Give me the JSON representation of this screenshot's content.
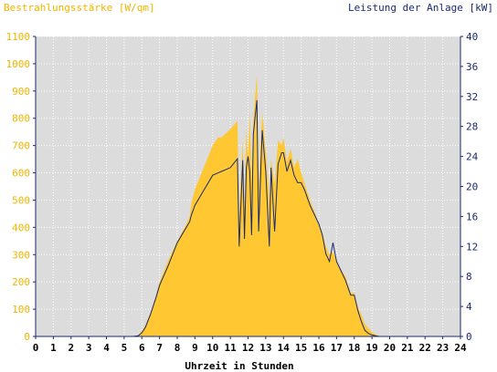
{
  "chart_data": {
    "type": "area",
    "y_left_label": "Bestrahlungsstärke [W/qm]",
    "y_right_label": "Leistung der Anlage [kW]",
    "xlabel": "Uhrzeit in Stunden",
    "xlim": [
      0,
      24
    ],
    "y_left_lim": [
      0,
      1100
    ],
    "y_right_lim": [
      0,
      40
    ],
    "x_ticks": [
      "0",
      "1",
      "2",
      "3",
      "4",
      "5",
      "6",
      "7",
      "8",
      "9",
      "10",
      "11",
      "12",
      "13",
      "14",
      "15",
      "16",
      "17",
      "18",
      "19",
      "20",
      "21",
      "22",
      "23",
      "24"
    ],
    "y_left_ticks": [
      "0",
      "100",
      "200",
      "300",
      "400",
      "500",
      "600",
      "700",
      "800",
      "900",
      "1000",
      "1100"
    ],
    "y_right_ticks": [
      "0",
      "4",
      "8",
      "12",
      "16",
      "20",
      "24",
      "28",
      "32",
      "36",
      "40"
    ],
    "grid": true,
    "colors": {
      "irradiance": "#ffc832",
      "power": "#1a2a6c",
      "plot_bg": "#dcdcdc",
      "grid": "#ffffff",
      "axis": "#1a2a6c"
    },
    "series": [
      {
        "name": "Bestrahlungsstärke [W/qm]",
        "axis": "left",
        "x": [
          0,
          5.5,
          5.8,
          6.0,
          6.2,
          6.5,
          6.8,
          7.0,
          7.5,
          8.0,
          8.5,
          8.7,
          8.8,
          9.0,
          9.5,
          10.0,
          10.3,
          10.5,
          11.0,
          11.4,
          11.5,
          11.7,
          11.8,
          11.9,
          12.0,
          12.1,
          12.2,
          12.3,
          12.5,
          12.6,
          12.8,
          13.0,
          13.2,
          13.3,
          13.5,
          13.7,
          13.9,
          14.0,
          14.2,
          14.4,
          14.6,
          14.8,
          15.0,
          15.2,
          15.5,
          15.8,
          16.0,
          16.2,
          16.4,
          16.6,
          16.8,
          17.0,
          17.2,
          17.5,
          17.8,
          18.0,
          18.2,
          18.4,
          18.6,
          18.8,
          19.0,
          19.2,
          19.4,
          19.6,
          20.0,
          24.0
        ],
        "y": [
          0,
          0,
          5,
          20,
          40,
          90,
          150,
          200,
          280,
          350,
          410,
          440,
          490,
          540,
          620,
          700,
          730,
          730,
          760,
          790,
          450,
          720,
          470,
          760,
          660,
          820,
          580,
          800,
          960,
          560,
          820,
          680,
          500,
          650,
          560,
          720,
          700,
          730,
          640,
          690,
          620,
          650,
          600,
          560,
          500,
          450,
          410,
          380,
          330,
          300,
          310,
          280,
          250,
          220,
          160,
          160,
          110,
          80,
          45,
          30,
          15,
          8,
          2,
          0,
          0,
          0
        ]
      },
      {
        "name": "Leistung der Anlage [kW]",
        "axis": "right",
        "x": [
          0,
          5.5,
          5.8,
          6.0,
          6.2,
          6.5,
          6.8,
          7.0,
          7.5,
          8.0,
          8.5,
          8.7,
          8.8,
          9.0,
          9.5,
          10.0,
          10.3,
          10.5,
          11.0,
          11.4,
          11.5,
          11.7,
          11.8,
          11.9,
          12.0,
          12.1,
          12.2,
          12.3,
          12.5,
          12.6,
          12.8,
          13.0,
          13.2,
          13.3,
          13.5,
          13.7,
          13.9,
          14.0,
          14.2,
          14.4,
          14.6,
          14.8,
          15.0,
          15.2,
          15.5,
          15.8,
          16.0,
          16.2,
          16.4,
          16.6,
          16.8,
          17.0,
          17.2,
          17.5,
          17.8,
          18.0,
          18.2,
          18.4,
          18.6,
          18.8,
          19.0,
          19.2,
          19.4,
          19.6,
          20.0,
          24.0
        ],
        "y": [
          0,
          0,
          0.1,
          0.5,
          1.2,
          3.0,
          5.2,
          6.8,
          9.5,
          12.5,
          14.5,
          15.3,
          16.2,
          17.5,
          19.5,
          21.5,
          21.8,
          22.0,
          22.5,
          23.7,
          12.0,
          23.5,
          13.0,
          22.5,
          24.0,
          22.0,
          13.5,
          27.0,
          31.5,
          14.0,
          27.5,
          22.0,
          12.0,
          22.5,
          14.0,
          23.0,
          24.5,
          24.5,
          22.0,
          23.5,
          21.5,
          20.5,
          20.5,
          19.5,
          17.5,
          16.0,
          15.0,
          13.5,
          11.0,
          10.0,
          12.5,
          10.0,
          9.0,
          7.5,
          5.5,
          5.5,
          3.5,
          2.0,
          0.8,
          0.4,
          0.2,
          0.1,
          0.0,
          0,
          0,
          0
        ]
      }
    ]
  }
}
